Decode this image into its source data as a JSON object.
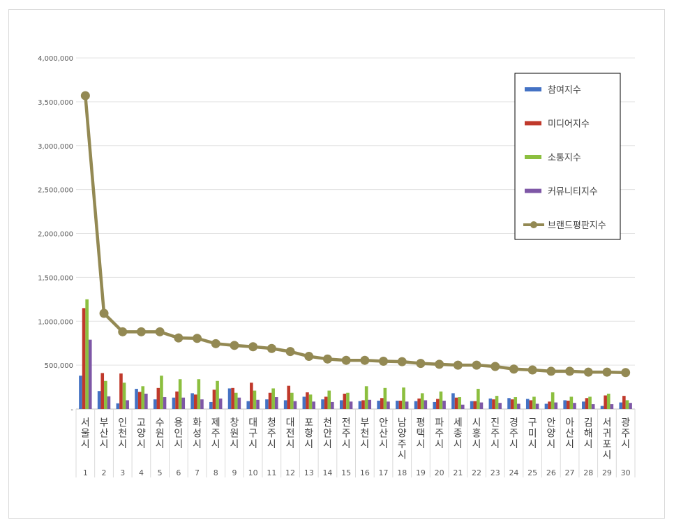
{
  "chart_data": {
    "type": "bar",
    "title": "",
    "xlabel": "",
    "ylabel": "",
    "ylim": [
      0,
      4000000
    ],
    "yticks": [
      "-",
      "500,000",
      "1,000,000",
      "1,500,000",
      "2,000,000",
      "2,500,000",
      "3,000,000",
      "3,500,000",
      "4,000,000"
    ],
    "grid": true,
    "legend_position": "right",
    "categories": [
      "서울시",
      "부산시",
      "인천시",
      "고양시",
      "수원시",
      "용인시",
      "화성시",
      "제주시",
      "창원시",
      "대구시",
      "청주시",
      "대전시",
      "포항시",
      "천안시",
      "전주시",
      "부천시",
      "안산시",
      "남양주시",
      "평택시",
      "파주시",
      "세종시",
      "시흥시",
      "진주시",
      "경주시",
      "구미시",
      "안양시",
      "아산시",
      "김해시",
      "서귀포시",
      "광주시"
    ],
    "ranks": [
      "1",
      "2",
      "3",
      "4",
      "5",
      "6",
      "7",
      "8",
      "9",
      "10",
      "11",
      "12",
      "13",
      "14",
      "15",
      "16",
      "17",
      "18",
      "19",
      "20",
      "21",
      "22",
      "23",
      "24",
      "25",
      "26",
      "27",
      "28",
      "29",
      "30"
    ],
    "series": [
      {
        "name": "참여지수",
        "type": "bar",
        "color": "#4472c4",
        "values": [
          380000,
          205000,
          65000,
          230000,
          110000,
          130000,
          180000,
          80000,
          235000,
          90000,
          110000,
          100000,
          140000,
          110000,
          100000,
          90000,
          95000,
          95000,
          90000,
          80000,
          180000,
          90000,
          120000,
          125000,
          115000,
          60000,
          100000,
          85000,
          35000,
          75000
        ]
      },
      {
        "name": "미디어지수",
        "type": "bar",
        "color": "#c0392b",
        "values": [
          1150000,
          410000,
          405000,
          195000,
          240000,
          200000,
          165000,
          220000,
          240000,
          300000,
          185000,
          265000,
          190000,
          140000,
          175000,
          100000,
          125000,
          95000,
          120000,
          115000,
          130000,
          90000,
          110000,
          110000,
          100000,
          85000,
          95000,
          125000,
          155000,
          150000
        ]
      },
      {
        "name": "소통지수",
        "type": "bar",
        "color": "#8cbf3f",
        "values": [
          1250000,
          320000,
          300000,
          260000,
          380000,
          340000,
          340000,
          320000,
          185000,
          210000,
          235000,
          185000,
          165000,
          210000,
          185000,
          260000,
          240000,
          245000,
          180000,
          200000,
          135000,
          230000,
          150000,
          135000,
          140000,
          190000,
          140000,
          140000,
          175000,
          100000
        ]
      },
      {
        "name": "커뮤니티지수",
        "type": "bar",
        "color": "#7e57a6",
        "values": [
          790000,
          145000,
          100000,
          175000,
          135000,
          130000,
          110000,
          120000,
          130000,
          105000,
          135000,
          90000,
          85000,
          80000,
          85000,
          105000,
          85000,
          85000,
          100000,
          95000,
          50000,
          75000,
          70000,
          60000,
          60000,
          75000,
          70000,
          55000,
          55000,
          70000
        ]
      },
      {
        "name": "브랜드평판지수",
        "type": "line",
        "color": "#938953",
        "values": [
          3570000,
          1090000,
          880000,
          880000,
          880000,
          810000,
          805000,
          745000,
          725000,
          710000,
          690000,
          655000,
          600000,
          570000,
          555000,
          555000,
          545000,
          540000,
          520000,
          510000,
          500000,
          500000,
          485000,
          455000,
          445000,
          430000,
          430000,
          420000,
          420000,
          415000
        ]
      }
    ]
  }
}
